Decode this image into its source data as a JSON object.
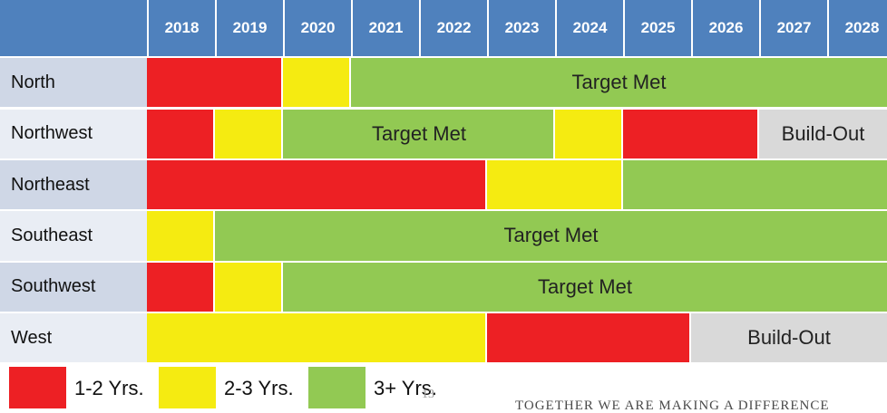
{
  "table": {
    "years": [
      2018,
      2019,
      2020,
      2021,
      2022,
      2023,
      2024,
      2025,
      2026,
      2027,
      2028
    ],
    "rows": [
      {
        "name": "North",
        "segments": [
          {
            "from": 2018,
            "to": 2019,
            "color": "#ed2024"
          },
          {
            "from": 2020,
            "to": 2020,
            "color": "#f5eb11"
          },
          {
            "from": 2021,
            "to": 2028,
            "color": "#92c953",
            "label": "Target Met"
          }
        ]
      },
      {
        "name": "Northwest",
        "segments": [
          {
            "from": 2018,
            "to": 2018,
            "color": "#ed2024"
          },
          {
            "from": 2019,
            "to": 2019,
            "color": "#f5eb11"
          },
          {
            "from": 2020,
            "to": 2023,
            "color": "#92c953",
            "label": "Target Met"
          },
          {
            "from": 2024,
            "to": 2024,
            "color": "#f5eb11"
          },
          {
            "from": 2025,
            "to": 2026,
            "color": "#ed2024"
          },
          {
            "from": 2027,
            "to": 2028,
            "color": "#d9d9d9",
            "label": "Build-Out"
          }
        ]
      },
      {
        "name": "Northeast",
        "segments": [
          {
            "from": 2018,
            "to": 2022,
            "color": "#ed2024"
          },
          {
            "from": 2023,
            "to": 2024,
            "color": "#f5eb11"
          },
          {
            "from": 2025,
            "to": 2028,
            "color": "#92c953"
          }
        ]
      },
      {
        "name": "Southeast",
        "segments": [
          {
            "from": 2018,
            "to": 2018,
            "color": "#f5eb11"
          },
          {
            "from": 2019,
            "to": 2028,
            "color": "#92c953",
            "label": "Target Met"
          }
        ]
      },
      {
        "name": "Southwest",
        "segments": [
          {
            "from": 2018,
            "to": 2018,
            "color": "#ed2024"
          },
          {
            "from": 2019,
            "to": 2019,
            "color": "#f5eb11"
          },
          {
            "from": 2020,
            "to": 2028,
            "color": "#92c953",
            "label": "Target Met"
          }
        ]
      },
      {
        "name": "West",
        "segments": [
          {
            "from": 2018,
            "to": 2022,
            "color": "#f5eb11"
          },
          {
            "from": 2023,
            "to": 2025,
            "color": "#ed2024"
          },
          {
            "from": 2026,
            "to": 2028,
            "color": "#d9d9d9",
            "label": "Build-Out"
          }
        ]
      }
    ]
  },
  "legend": [
    {
      "label": "1-2 Yrs.",
      "color": "#ed2024"
    },
    {
      "label": "2-3 Yrs.",
      "color": "#f5eb11"
    },
    {
      "label": "3+ Yrs.",
      "color": "#92c953"
    }
  ],
  "page_number": "13",
  "footer": "TOGETHER WE ARE MAKING A DIFFERENCE"
}
